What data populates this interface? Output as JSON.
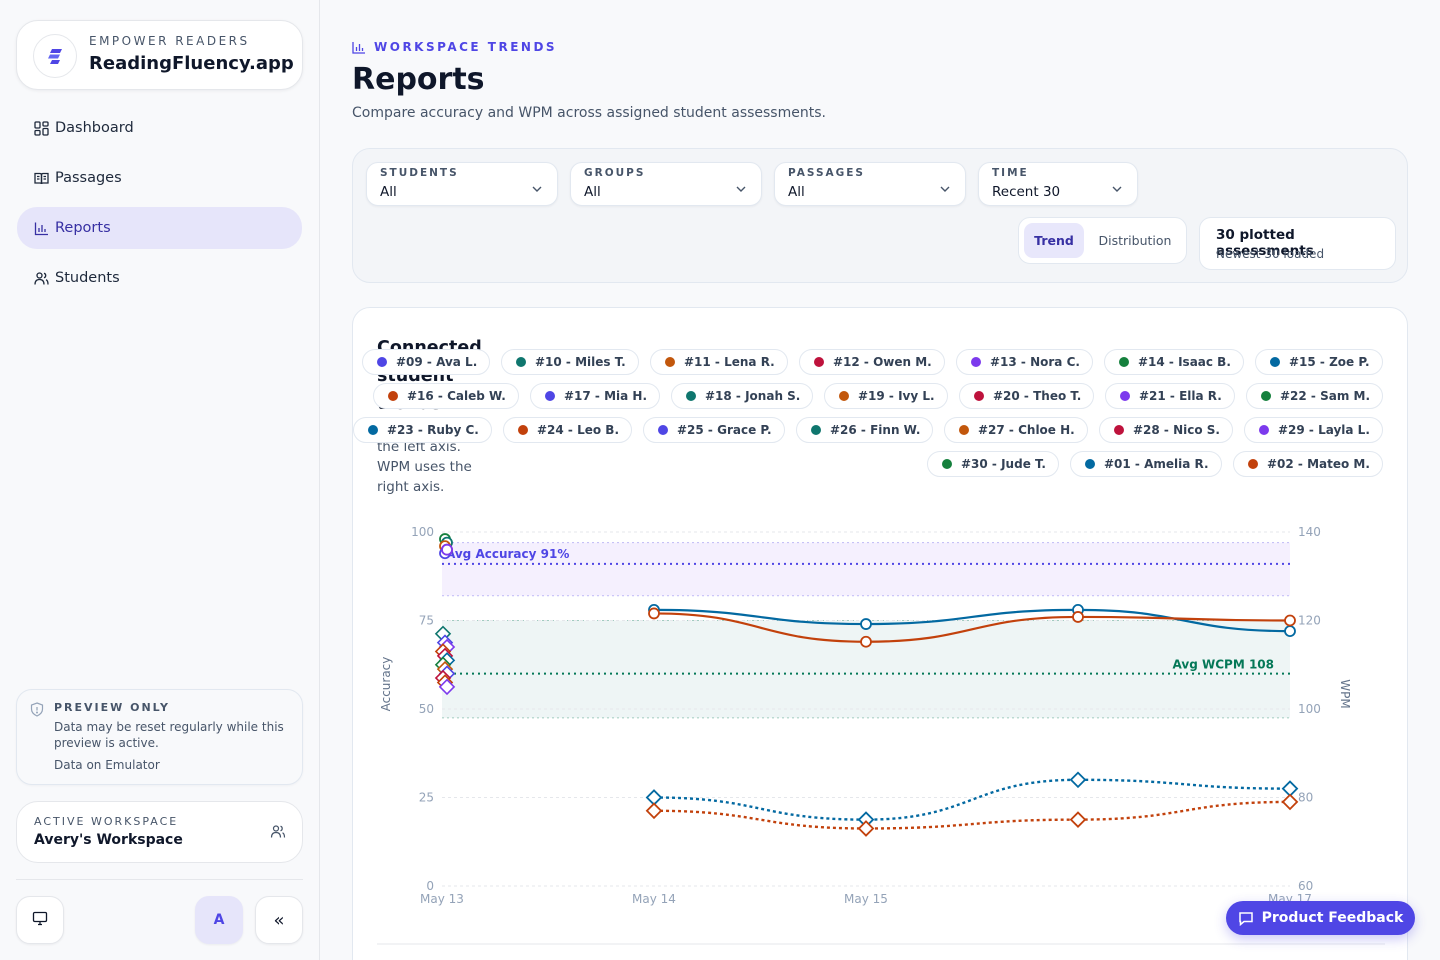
{
  "brand": {
    "kicker": "EMPOWER READERS",
    "name": "ReadingFluency.app",
    "icon": "stacked-lines-logo",
    "accent": "#4f46e5"
  },
  "nav": {
    "items": [
      {
        "label": "Dashboard",
        "icon": "grid-icon",
        "active": false
      },
      {
        "label": "Passages",
        "icon": "book-icon",
        "active": false
      },
      {
        "label": "Reports",
        "icon": "bar-chart-icon",
        "active": true
      },
      {
        "label": "Students",
        "icon": "users-icon",
        "active": false
      }
    ]
  },
  "preview": {
    "title": "PREVIEW ONLY",
    "text": "Data may be reset regularly while this preview is active.",
    "sub": "Data on Emulator",
    "icon": "shield-icon"
  },
  "workspace": {
    "label": "ACTIVE WORKSPACE",
    "name": "Avery's Workspace",
    "icon": "users-icon"
  },
  "footer": {
    "avatar_initial": "A",
    "collapse_glyph": "«",
    "monitor_icon": "monitor-icon"
  },
  "header": {
    "kicker": "WORKSPACE TRENDS",
    "title": "Reports",
    "subtitle": "Compare accuracy and WPM across assigned student assessments."
  },
  "filters": [
    {
      "label": "STUDENTS",
      "value": "All"
    },
    {
      "label": "GROUPS",
      "value": "All"
    },
    {
      "label": "PASSAGES",
      "value": "All"
    },
    {
      "label": "TIME",
      "value": "Recent 30"
    }
  ],
  "view_toggle": {
    "trend": "Trend",
    "distribution": "Distribution",
    "active": "trend"
  },
  "summary": {
    "title": "30 plotted assessments",
    "subtitle": "Newest 30 loaded"
  },
  "chart_panel": {
    "title": "Connected student trends",
    "description": "Accuracy uses the left axis. WPM uses the right axis."
  },
  "legend": [
    {
      "label": "#09 - Ava L.",
      "color": "#4f46e5"
    },
    {
      "label": "#10 - Miles T.",
      "color": "#0f766e"
    },
    {
      "label": "#11 - Lena R.",
      "color": "#c2570c"
    },
    {
      "label": "#12 - Owen M.",
      "color": "#be123c"
    },
    {
      "label": "#13 - Nora C.",
      "color": "#7c3aed"
    },
    {
      "label": "#14 - Isaac B.",
      "color": "#15803d"
    },
    {
      "label": "#15 - Zoe P.",
      "color": "#0369a1"
    },
    {
      "label": "#16 - Caleb W.",
      "color": "#c2410c"
    },
    {
      "label": "#17 - Mia H.",
      "color": "#4f46e5"
    },
    {
      "label": "#18 - Jonah S.",
      "color": "#0f766e"
    },
    {
      "label": "#19 - Ivy L.",
      "color": "#c2570c"
    },
    {
      "label": "#20 - Theo T.",
      "color": "#be123c"
    },
    {
      "label": "#21 - Ella R.",
      "color": "#7c3aed"
    },
    {
      "label": "#22 - Sam M.",
      "color": "#15803d"
    },
    {
      "label": "#23 - Ruby C.",
      "color": "#0369a1"
    },
    {
      "label": "#24 - Leo B.",
      "color": "#c2410c"
    },
    {
      "label": "#25 - Grace P.",
      "color": "#4f46e5"
    },
    {
      "label": "#26 - Finn W.",
      "color": "#0f766e"
    },
    {
      "label": "#27 - Chloe H.",
      "color": "#c2570c"
    },
    {
      "label": "#28 - Nico S.",
      "color": "#be123c"
    },
    {
      "label": "#29 - Layla L.",
      "color": "#7c3aed"
    },
    {
      "label": "#30 - Jude T.",
      "color": "#15803d"
    },
    {
      "label": "#01 - Amelia R.",
      "color": "#0369a1"
    },
    {
      "label": "#02 - Mateo M.",
      "color": "#c2410c"
    }
  ],
  "chart_data": {
    "type": "line",
    "x_categories": [
      "May 13",
      "May 14",
      "May 15",
      "May 16",
      "May 17"
    ],
    "x_tick_labels": [
      "May 13",
      "May 14",
      "May 15",
      "",
      "May 17"
    ],
    "ylabel_left": "Accuracy",
    "ylabel_right": "WPM",
    "ylim_left": [
      0,
      100
    ],
    "ylim_right": [
      60,
      140
    ],
    "yticks_left": [
      0,
      25,
      50,
      75,
      100
    ],
    "yticks_right": [
      60,
      80,
      100,
      120,
      140
    ],
    "grid": true,
    "reference_lines": [
      {
        "label": "Avg Accuracy 91%",
        "axis": "left",
        "value": 91,
        "band": [
          82,
          97
        ],
        "color": "#4f46e5"
      },
      {
        "label": "Avg WCPM 108",
        "axis": "right",
        "value": 108,
        "band": [
          98,
          120
        ],
        "color": "#047857"
      }
    ],
    "series": [
      {
        "name": "#01 - Amelia R.",
        "metric": "Accuracy",
        "axis": "left",
        "color": "#0369a1",
        "x": [
          "May 14",
          "May 15",
          "May 16",
          "May 17"
        ],
        "y": [
          78,
          74,
          78,
          72
        ]
      },
      {
        "name": "#02 - Mateo M.",
        "metric": "Accuracy",
        "axis": "left",
        "color": "#c2410c",
        "x": [
          "May 14",
          "May 15",
          "May 16",
          "May 17"
        ],
        "y": [
          77,
          69,
          76,
          75
        ]
      },
      {
        "name": "#01 - Amelia R.",
        "metric": "WPM",
        "axis": "right",
        "color": "#0369a1",
        "dashed": true,
        "x": [
          "May 14",
          "May 15",
          "May 16",
          "May 17"
        ],
        "y": [
          80,
          75,
          84,
          82
        ]
      },
      {
        "name": "#02 - Mateo M.",
        "metric": "WPM",
        "axis": "right",
        "color": "#c2410c",
        "dashed": true,
        "x": [
          "May 14",
          "May 15",
          "May 16",
          "May 17"
        ],
        "y": [
          77,
          73,
          75,
          79
        ]
      }
    ],
    "may13_cluster": {
      "accuracy": [
        {
          "color": "#15803d",
          "y": 98
        },
        {
          "color": "#0f766e",
          "y": 97
        },
        {
          "color": "#c2570c",
          "y": 96
        },
        {
          "color": "#be123c",
          "y": 95
        },
        {
          "color": "#4f46e5",
          "y": 94
        },
        {
          "color": "#7c3aed",
          "y": 95
        }
      ],
      "wpm": [
        {
          "color": "#0f766e",
          "y": 117
        },
        {
          "color": "#4f46e5",
          "y": 115
        },
        {
          "color": "#7c3aed",
          "y": 114
        },
        {
          "color": "#c2410c",
          "y": 113
        },
        {
          "color": "#be123c",
          "y": 112
        },
        {
          "color": "#0369a1",
          "y": 111
        },
        {
          "color": "#15803d",
          "y": 110
        },
        {
          "color": "#c2570c",
          "y": 109
        },
        {
          "color": "#4f46e5",
          "y": 108
        },
        {
          "color": "#be123c",
          "y": 107
        },
        {
          "color": "#c2410c",
          "y": 106
        },
        {
          "color": "#7c3aed",
          "y": 105
        }
      ]
    }
  },
  "feedback_button": {
    "label": "Product Feedback",
    "icon": "chat-icon"
  }
}
